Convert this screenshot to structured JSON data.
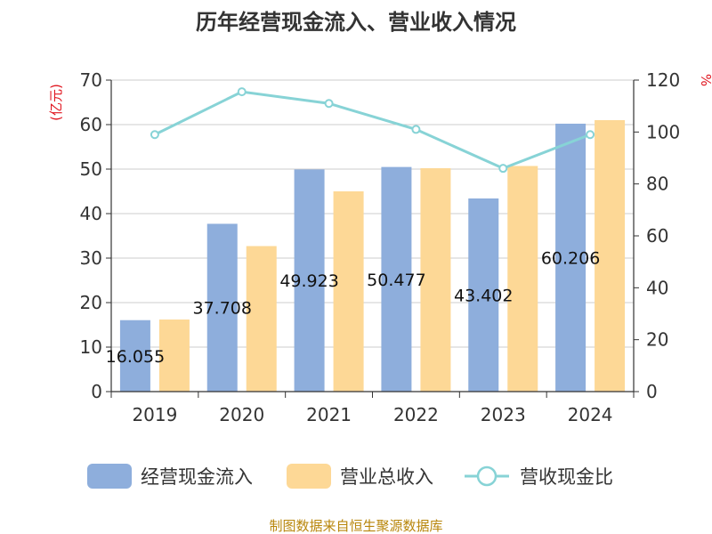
{
  "colors": {
    "cash": "#8eaedc",
    "revenue": "#fdd896",
    "ratio": "#87d3d6",
    "unit_red": "#e0141e",
    "source": "#b8860b"
  },
  "chart_data": {
    "type": "bar",
    "title": "历年经营现金流入、营业收入情况",
    "categories": [
      "2019",
      "2020",
      "2021",
      "2022",
      "2023",
      "2024"
    ],
    "y_left": {
      "unit": "(亿元)",
      "ylim": [
        0,
        70
      ],
      "ticks": [
        "0",
        "10",
        "20",
        "30",
        "40",
        "50",
        "60",
        "70"
      ]
    },
    "y_right": {
      "unit": "%",
      "ylim": [
        0,
        120
      ],
      "ticks": [
        "0",
        "20",
        "40",
        "60",
        "80",
        "100",
        "120"
      ]
    },
    "series": [
      {
        "name": "经营现金流入",
        "type": "bar",
        "axis": "left",
        "values": [
          16.055,
          37.708,
          49.923,
          50.477,
          43.402,
          60.206
        ],
        "labels": [
          "16.055",
          "37.708",
          "49.923",
          "50.477",
          "43.402",
          "60.206"
        ]
      },
      {
        "name": "营业总收入",
        "type": "bar",
        "axis": "left",
        "values": [
          16.2,
          32.7,
          45.0,
          50.2,
          50.7,
          61.0
        ]
      },
      {
        "name": "营收现金比",
        "type": "line",
        "axis": "right",
        "values": [
          99,
          115.5,
          111,
          101,
          86,
          99
        ]
      }
    ],
    "grid": true,
    "legend_position": "bottom"
  },
  "source": "制图数据来自恒生聚源数据库"
}
